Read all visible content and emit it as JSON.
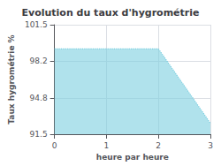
{
  "chart_data": {
    "type": "area",
    "title": "Evolution du taux d'hygrométrie",
    "xlabel": "heure par heure",
    "ylabel": "Taux hygrométrie %",
    "x": [
      0,
      2,
      3
    ],
    "values": [
      99.3,
      99.3,
      92.5
    ],
    "xlim": [
      0,
      3
    ],
    "xticks": [
      0,
      1,
      2,
      3
    ],
    "ylim": [
      91.5,
      101.5
    ],
    "yticks": [
      91.5,
      94.8,
      98.2,
      101.5
    ],
    "color": "#7ccfe0",
    "line_style": "dotted",
    "grid": true
  }
}
